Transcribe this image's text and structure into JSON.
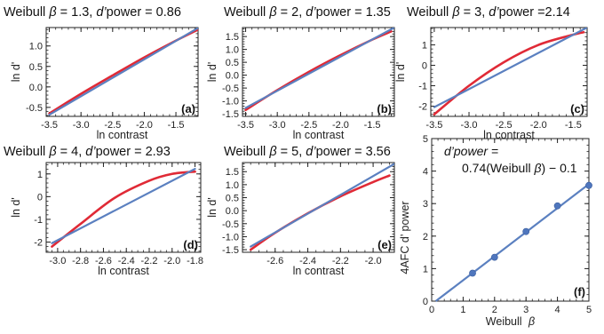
{
  "colors": {
    "fit": "#e02a36",
    "linear": "#5b80c0",
    "points": "#4f76bd",
    "frame": "#222222"
  },
  "chart_data": [
    {
      "id": "a",
      "type": "line",
      "panel_label": "(a)",
      "title_prefix": "Weibull ",
      "title_beta": "β",
      "title_beta_val": " = 1.3, ",
      "title_d": "d’",
      "title_suffix": "power = 0.86",
      "xlabel": "ln contrast",
      "ylabel": "ln d'",
      "xlim": [
        -3.55,
        -1.15
      ],
      "ylim": [
        -0.72,
        1.45
      ],
      "xticks": [
        -3.5,
        -3.0,
        -2.5,
        -2.0,
        -1.5
      ],
      "xtick_labels": [
        "-3.5",
        "-3.0",
        "-2.5",
        "-2.0",
        "-1.5"
      ],
      "yticks": [
        -0.5,
        0.0,
        0.5,
        1.0
      ],
      "ytick_labels": [
        "-0.5",
        "0.0",
        "0.5",
        "1.0"
      ],
      "xminor": 0.1,
      "yminor": 0.1,
      "series": [
        {
          "style": "curve",
          "x": [
            -3.5,
            -3.0,
            -2.5,
            -2.0,
            -1.5,
            -1.15
          ],
          "y": [
            -0.65,
            -0.17,
            0.28,
            0.72,
            1.13,
            1.4
          ]
        },
        {
          "style": "line",
          "x": [
            -3.5,
            -1.15
          ],
          "y": [
            -0.68,
            1.44
          ]
        }
      ]
    },
    {
      "id": "b",
      "type": "line",
      "panel_label": "(b)",
      "title_prefix": "Weibull ",
      "title_beta": "β",
      "title_beta_val": " = 2, ",
      "title_d": "d’",
      "title_suffix": "power = 1.35",
      "xlabel": "ln contrast",
      "ylabel": "ln d'",
      "xlim": [
        -3.55,
        -1.15
      ],
      "ylim": [
        -1.6,
        1.85
      ],
      "xticks": [
        -3.5,
        -3.0,
        -2.5,
        -2.0,
        -1.5
      ],
      "xtick_labels": [
        "-3.5",
        "-3.0",
        "-2.5",
        "-2.0",
        "-1.5"
      ],
      "yticks": [
        -1.5,
        -1.0,
        -0.5,
        0.0,
        0.5,
        1.0,
        1.5
      ],
      "ytick_labels": [
        "-1.5",
        "-1.0",
        "-0.5",
        "0.0",
        "0.5",
        "1.0",
        "1.5"
      ],
      "xminor": 0.1,
      "yminor": 0.1,
      "series": [
        {
          "style": "curve",
          "x": [
            -3.5,
            -3.0,
            -2.5,
            -2.0,
            -1.5,
            -1.2
          ],
          "y": [
            -1.35,
            -0.58,
            0.13,
            0.78,
            1.38,
            1.7
          ]
        },
        {
          "style": "line",
          "x": [
            -3.5,
            -1.15
          ],
          "y": [
            -1.27,
            1.85
          ]
        }
      ]
    },
    {
      "id": "c",
      "type": "line",
      "panel_label": "(c)",
      "title_prefix": "Weibull ",
      "title_beta": "β",
      "title_beta_val": " = 3, ",
      "title_d": "d’",
      "title_suffix": "power =2.14",
      "xlabel": "ln contrast",
      "ylabel": "ln d'",
      "xlim": [
        -3.55,
        -1.3
      ],
      "ylim": [
        -2.5,
        1.85
      ],
      "xticks": [
        -3.5,
        -3.0,
        -2.5,
        -2.0,
        -1.5
      ],
      "xtick_labels": [
        "-3.5",
        "-3.0",
        "-2.5",
        "-2.0",
        "-1.5"
      ],
      "yticks": [
        -2,
        -1,
        0,
        1
      ],
      "ytick_labels": [
        "-2",
        "-1",
        "0",
        "1"
      ],
      "xminor": 0.1,
      "yminor": 0.2,
      "series": [
        {
          "style": "curve",
          "x": [
            -3.5,
            -3.0,
            -2.5,
            -2.0,
            -1.5,
            -1.35
          ],
          "y": [
            -2.4,
            -1.0,
            0.15,
            1.0,
            1.5,
            1.62
          ]
        },
        {
          "style": "line",
          "x": [
            -3.5,
            -1.3
          ],
          "y": [
            -2.05,
            1.85
          ]
        }
      ]
    },
    {
      "id": "d",
      "type": "line",
      "panel_label": "(d)",
      "title_prefix": "Weibull ",
      "title_beta": "β",
      "title_beta_val": " = 4, ",
      "title_d": "d’",
      "title_suffix": "power = 2.93",
      "xlabel": "ln contrast",
      "ylabel": "ln d'",
      "xlim": [
        -3.1,
        -1.75
      ],
      "ylim": [
        -2.45,
        1.5
      ],
      "xticks": [
        -3.0,
        -2.8,
        -2.6,
        -2.4,
        -2.2,
        -2.0,
        -1.8
      ],
      "xtick_labels": [
        "-3.0",
        "-2.8",
        "-2.6",
        "-2.4",
        "-2.2",
        "-2.0",
        "-1.8"
      ],
      "yticks": [
        -2,
        -1,
        0,
        1
      ],
      "ytick_labels": [
        "-2",
        "-1",
        "0",
        "1"
      ],
      "xminor": 0.05,
      "yminor": 0.2,
      "series": [
        {
          "style": "curve",
          "x": [
            -3.05,
            -2.8,
            -2.5,
            -2.2,
            -2.0,
            -1.8
          ],
          "y": [
            -2.2,
            -1.2,
            -0.05,
            0.7,
            1.0,
            1.1
          ]
        },
        {
          "style": "line",
          "x": [
            -3.05,
            -1.8
          ],
          "y": [
            -2.05,
            1.22
          ]
        }
      ]
    },
    {
      "id": "e",
      "type": "line",
      "panel_label": "(e)",
      "title_prefix": "Weibull ",
      "title_beta": "β",
      "title_beta_val": " = 5, ",
      "title_d": "d’",
      "title_suffix": "power = 3.56",
      "xlabel": "ln contrast",
      "ylabel": "ln d'",
      "xlim": [
        -2.8,
        -1.87
      ],
      "ylim": [
        -1.6,
        1.85
      ],
      "xticks": [
        -2.6,
        -2.4,
        -2.2,
        -2.0
      ],
      "xtick_labels": [
        "-2.6",
        "-2.4",
        "-2.2",
        "-2.0"
      ],
      "yticks": [
        -1.5,
        -1.0,
        -0.5,
        0.0,
        0.5,
        1.0,
        1.5
      ],
      "ytick_labels": [
        "-1.5",
        "-1.0",
        "-0.5",
        "0.0",
        "0.5",
        "1.0",
        "1.5"
      ],
      "xminor": 0.05,
      "yminor": 0.1,
      "series": [
        {
          "style": "curve",
          "x": [
            -2.75,
            -2.6,
            -2.4,
            -2.2,
            -2.0,
            -1.9
          ],
          "y": [
            -1.5,
            -0.85,
            -0.1,
            0.55,
            1.1,
            1.35
          ]
        },
        {
          "style": "line",
          "x": [
            -2.75,
            -1.87
          ],
          "y": [
            -1.38,
            1.8
          ]
        }
      ]
    },
    {
      "id": "f",
      "type": "scatter",
      "panel_label": "(f)",
      "xlabel_a": "Weibull ",
      "xlabel_b": "β",
      "ylabel": "4AFC  d’ power",
      "annotation_line1": "d’power =",
      "annotation_line2": "0.74(Weibull ",
      "annotation_beta": "β",
      "annotation_tail": ") − 0.1",
      "xlim": [
        0,
        5
      ],
      "ylim": [
        0,
        5
      ],
      "xticks": [
        0,
        1,
        2,
        3,
        4,
        5
      ],
      "xtick_labels": [
        "0",
        "1",
        "2",
        "3",
        "4",
        "5"
      ],
      "yticks": [
        0,
        1,
        2,
        3,
        4,
        5
      ],
      "ytick_labels": [
        "0",
        "1",
        "2",
        "3",
        "4",
        "5"
      ],
      "xminor": 0.2,
      "yminor": 0.2,
      "points": {
        "x": [
          1.3,
          2,
          3,
          4,
          5
        ],
        "y": [
          0.86,
          1.35,
          2.14,
          2.93,
          3.56
        ]
      },
      "fit_line": {
        "x": [
          0.13,
          5
        ],
        "y": [
          0.0,
          3.6
        ]
      }
    }
  ]
}
